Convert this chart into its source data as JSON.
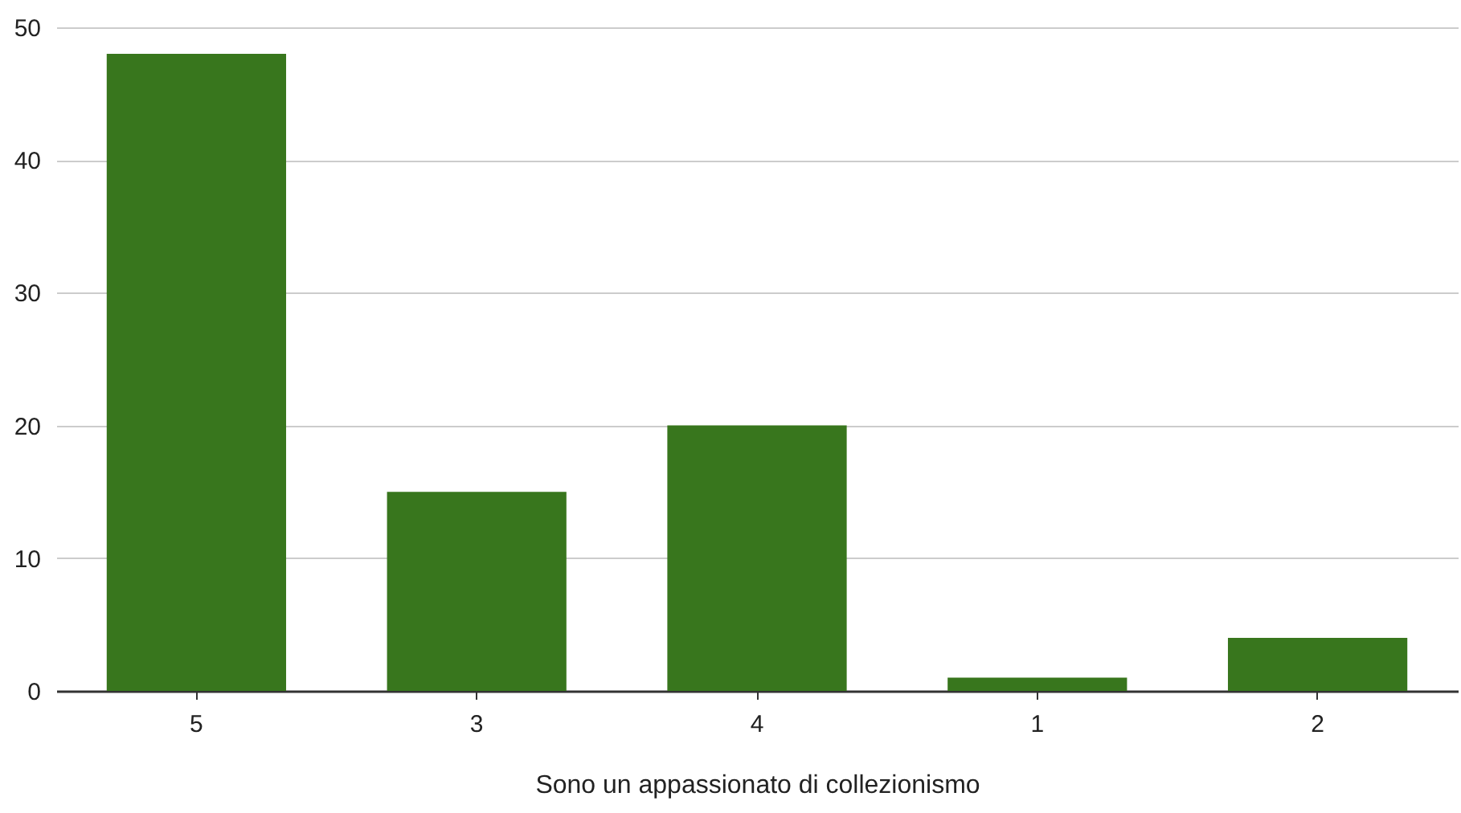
{
  "chart_data": {
    "type": "bar",
    "xlabel": "Sono un appassionato di collezionismo",
    "categories": [
      "5",
      "3",
      "4",
      "1",
      "2"
    ],
    "values": [
      48,
      15,
      20,
      1,
      4
    ],
    "color": "#38761d",
    "ylim": [
      0,
      50
    ],
    "yticks": [
      0,
      10,
      20,
      30,
      40,
      50
    ],
    "grid": "y"
  }
}
